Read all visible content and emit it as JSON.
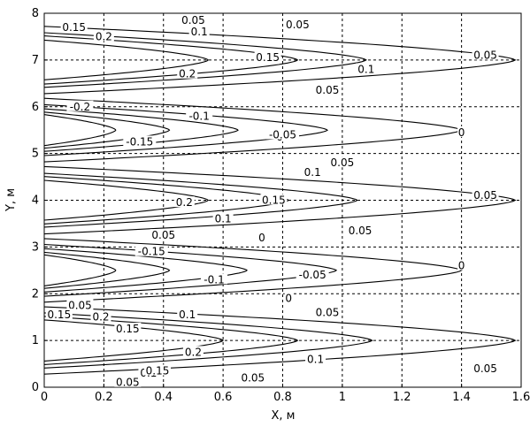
{
  "chart_data": {
    "type": "contour",
    "title": "",
    "xlabel": "X, м",
    "ylabel": "Y, м",
    "xlim": [
      0,
      1.6
    ],
    "ylim": [
      0,
      8
    ],
    "xticks": [
      "0",
      "0.2",
      "0.4",
      "0.6",
      "0.8",
      "1",
      "1.2",
      "1.4",
      "1.6"
    ],
    "yticks": [
      "0",
      "1",
      "2",
      "3",
      "4",
      "5",
      "6",
      "7",
      "8"
    ],
    "grid": true,
    "contours": [
      {
        "center_y": 1.0,
        "level": 0.05,
        "x_extent": 1.58
      },
      {
        "center_y": 1.0,
        "level": 0.1,
        "x_extent": 1.1
      },
      {
        "center_y": 1.0,
        "level": 0.15,
        "x_extent": 0.85
      },
      {
        "center_y": 1.0,
        "level": 0.2,
        "x_extent": 0.6
      },
      {
        "center_y": 2.5,
        "level": 0.0,
        "x_extent": 1.4
      },
      {
        "center_y": 2.5,
        "level": -0.05,
        "x_extent": 0.98
      },
      {
        "center_y": 2.5,
        "level": -0.1,
        "x_extent": 0.68
      },
      {
        "center_y": 2.5,
        "level": -0.15,
        "x_extent": 0.42
      },
      {
        "center_y": 2.5,
        "level": -0.2,
        "x_extent": 0.24
      },
      {
        "center_y": 4.0,
        "level": 0.05,
        "x_extent": 1.58
      },
      {
        "center_y": 4.0,
        "level": 0.1,
        "x_extent": 1.05
      },
      {
        "center_y": 4.0,
        "level": 0.15,
        "x_extent": 0.82
      },
      {
        "center_y": 4.0,
        "level": 0.2,
        "x_extent": 0.55
      },
      {
        "center_y": 5.5,
        "level": 0.0,
        "x_extent": 1.4
      },
      {
        "center_y": 5.5,
        "level": -0.05,
        "x_extent": 0.95
      },
      {
        "center_y": 5.5,
        "level": -0.1,
        "x_extent": 0.65
      },
      {
        "center_y": 5.5,
        "level": -0.15,
        "x_extent": 0.42
      },
      {
        "center_y": 5.5,
        "level": -0.2,
        "x_extent": 0.24
      },
      {
        "center_y": 7.0,
        "level": 0.05,
        "x_extent": 1.58
      },
      {
        "center_y": 7.0,
        "level": 0.1,
        "x_extent": 1.08
      },
      {
        "center_y": 7.0,
        "level": 0.15,
        "x_extent": 0.85
      },
      {
        "center_y": 7.0,
        "level": 0.2,
        "x_extent": 0.55
      }
    ],
    "contour_labels": [
      {
        "text": "0.05",
        "x": 0.7,
        "y": 0.2
      },
      {
        "text": "0.1",
        "x": 0.35,
        "y": 0.3
      },
      {
        "text": "0.15",
        "x": 0.38,
        "y": 0.35
      },
      {
        "text": "0.05",
        "x": 0.28,
        "y": 0.1
      },
      {
        "text": "0.2",
        "x": 0.5,
        "y": 0.75
      },
      {
        "text": "0.1",
        "x": 0.91,
        "y": 0.6
      },
      {
        "text": "0.05",
        "x": 1.48,
        "y": 0.4
      },
      {
        "text": "0.15",
        "x": 0.28,
        "y": 1.25
      },
      {
        "text": "0.1",
        "x": 0.48,
        "y": 1.55
      },
      {
        "text": "0.05",
        "x": 0.95,
        "y": 1.6
      },
      {
        "text": "0.05",
        "x": 0.12,
        "y": 1.75
      },
      {
        "text": "0.2",
        "x": 0.19,
        "y": 1.5
      },
      {
        "text": "0.15",
        "x": 0.05,
        "y": 1.55
      },
      {
        "text": "0",
        "x": 0.82,
        "y": 1.9
      },
      {
        "text": "-0.05",
        "x": 0.9,
        "y": 2.4
      },
      {
        "text": "-0.1",
        "x": 0.57,
        "y": 2.3
      },
      {
        "text": "-0.15",
        "x": 0.36,
        "y": 2.9
      },
      {
        "text": "0",
        "x": 1.4,
        "y": 2.6
      },
      {
        "text": "0.05",
        "x": 1.06,
        "y": 3.35
      },
      {
        "text": "0.1",
        "x": 0.6,
        "y": 3.6
      },
      {
        "text": "0.15",
        "x": 0.77,
        "y": 4.0
      },
      {
        "text": "0.2",
        "x": 0.47,
        "y": 3.95
      },
      {
        "text": "0.05",
        "x": 1.48,
        "y": 4.1
      },
      {
        "text": "0",
        "x": 0.73,
        "y": 3.2
      },
      {
        "text": "0.05",
        "x": 0.4,
        "y": 3.25
      },
      {
        "text": "0.1",
        "x": 0.9,
        "y": 4.6
      },
      {
        "text": "0.05",
        "x": 1.0,
        "y": 4.8
      },
      {
        "text": "0",
        "x": 0.79,
        "y": 5.35
      },
      {
        "text": "-0.05",
        "x": 0.8,
        "y": 5.4
      },
      {
        "text": "-0.1",
        "x": 0.52,
        "y": 5.8
      },
      {
        "text": "-0.15",
        "x": 0.32,
        "y": 5.25
      },
      {
        "text": "-0.2",
        "x": 0.12,
        "y": 6.0
      },
      {
        "text": "0",
        "x": 1.4,
        "y": 5.45
      },
      {
        "text": "0.05",
        "x": 0.95,
        "y": 6.35
      },
      {
        "text": "0.1",
        "x": 1.08,
        "y": 6.8
      },
      {
        "text": "0.15",
        "x": 0.75,
        "y": 7.05
      },
      {
        "text": "0.2",
        "x": 0.48,
        "y": 6.7
      },
      {
        "text": "0.05",
        "x": 1.48,
        "y": 7.1
      },
      {
        "text": "0.1",
        "x": 0.52,
        "y": 7.6
      },
      {
        "text": "0.2",
        "x": 0.2,
        "y": 7.5
      },
      {
        "text": "0.05",
        "x": 0.5,
        "y": 7.85
      },
      {
        "text": "0.05",
        "x": 0.85,
        "y": 7.75
      },
      {
        "text": "0.15",
        "x": 0.1,
        "y": 7.7
      }
    ]
  }
}
